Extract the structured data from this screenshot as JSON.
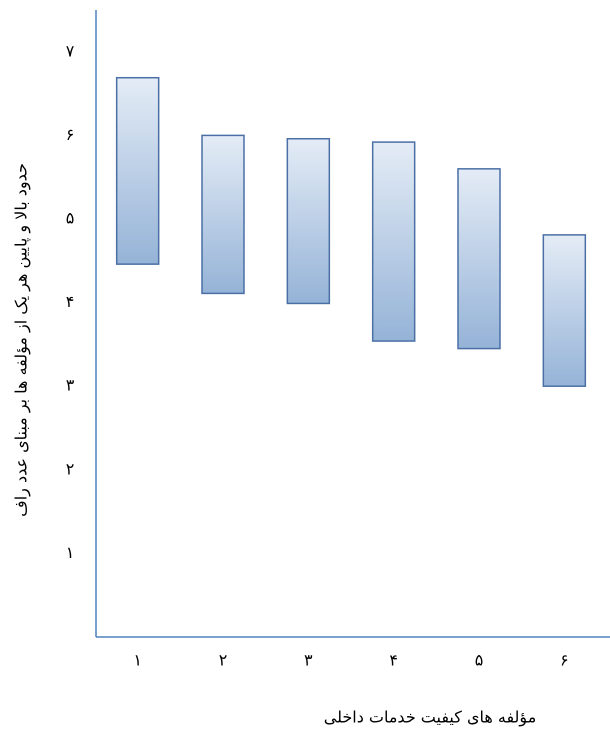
{
  "chart_data": {
    "type": "range-bar",
    "x_label": "مؤلفه های کیفیت خدمات داخلی",
    "y_label": "حدود بالا و پایین هر یک از مؤلفه ها بر مبنای عدد راف",
    "categories": [
      "۱",
      "۲",
      "۳",
      "۴",
      "۵",
      "۶"
    ],
    "low": [
      4.46,
      4.11,
      3.99,
      3.54,
      3.45,
      3.0
    ],
    "high": [
      6.69,
      6.0,
      5.96,
      5.92,
      5.6,
      4.81
    ],
    "color": "#95b3d7",
    "ylim": [
      0,
      7.5
    ],
    "yticks": [
      {
        "value": 1,
        "label": "۱"
      },
      {
        "value": 2,
        "label": "۲"
      },
      {
        "value": 3,
        "label": "۳"
      },
      {
        "value": 4,
        "label": "۴"
      },
      {
        "value": 5,
        "label": "۵"
      },
      {
        "value": 6,
        "label": "۶"
      },
      {
        "value": 7,
        "label": "۷"
      }
    ],
    "grid": false
  }
}
